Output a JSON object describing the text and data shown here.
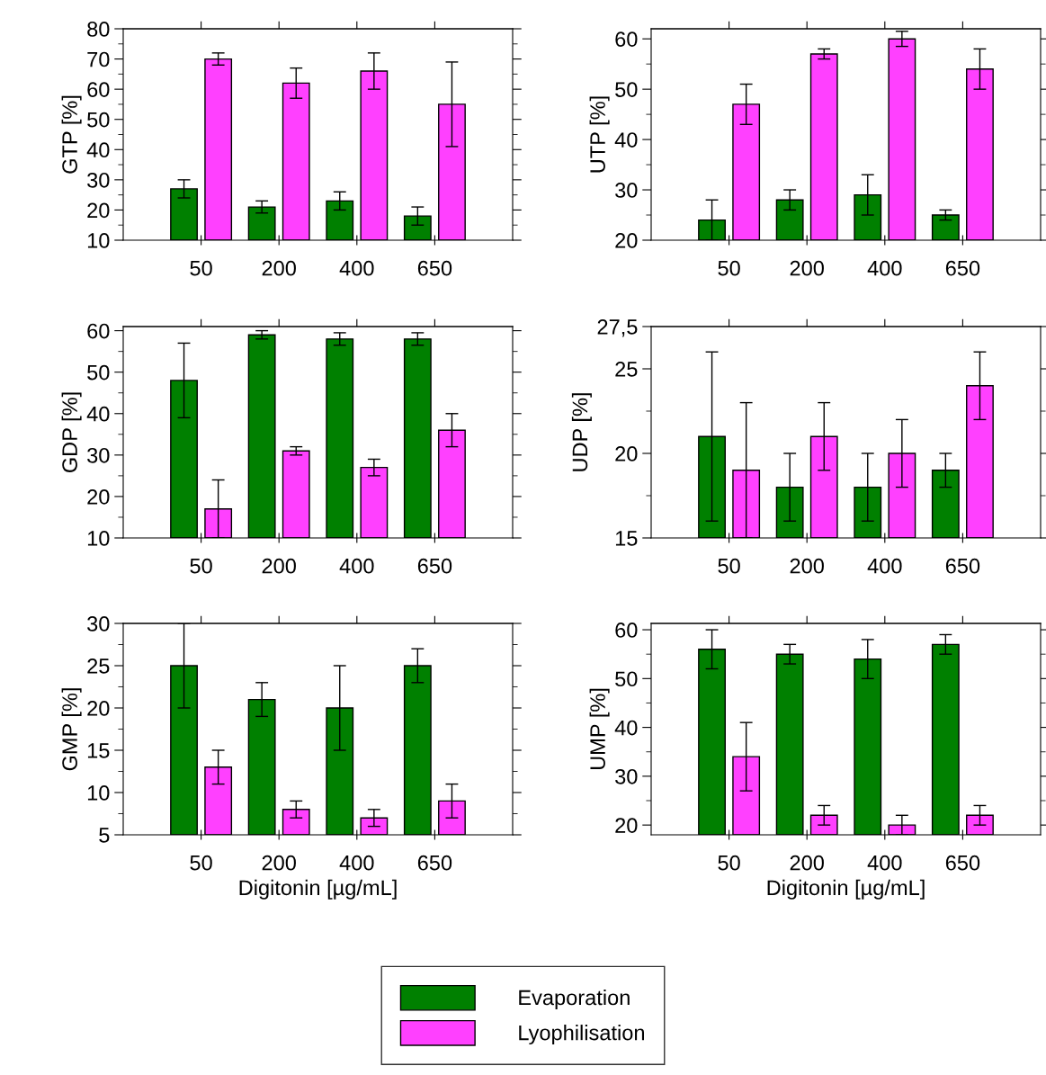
{
  "chart_data": [
    {
      "type": "bar",
      "ylabel": "GTP [%]",
      "legend": "bottom",
      "categories": [
        "50",
        "200",
        "400",
        "650"
      ],
      "ylim": [
        10,
        80
      ],
      "yticks": [
        10,
        20,
        30,
        40,
        50,
        60,
        70,
        80
      ],
      "series": [
        {
          "name": "Evaporation",
          "color": "#008000",
          "values": [
            27,
            21,
            23,
            18
          ],
          "errors": [
            3,
            2,
            3,
            3
          ]
        },
        {
          "name": "Lyophilisation",
          "color": "#ff40ff",
          "values": [
            70,
            62,
            66,
            55
          ],
          "errors": [
            2,
            5,
            6,
            14
          ]
        }
      ]
    },
    {
      "type": "bar",
      "ylabel": "UTP [%]",
      "legend": "bottom",
      "categories": [
        "50",
        "200",
        "400",
        "650"
      ],
      "ylim": [
        20,
        62
      ],
      "yticks": [
        20,
        30,
        40,
        50,
        60
      ],
      "series": [
        {
          "name": "Evaporation",
          "color": "#008000",
          "values": [
            24,
            28,
            29,
            25
          ],
          "errors": [
            4,
            2,
            4,
            1
          ]
        },
        {
          "name": "Lyophilisation",
          "color": "#ff40ff",
          "values": [
            47,
            57,
            60,
            54
          ],
          "errors": [
            4,
            1,
            1.5,
            4
          ]
        }
      ]
    },
    {
      "type": "bar",
      "ylabel": "GDP [%]",
      "legend": "bottom",
      "categories": [
        "50",
        "200",
        "400",
        "650"
      ],
      "ylim": [
        10,
        61
      ],
      "yticks": [
        10,
        20,
        30,
        40,
        50,
        60
      ],
      "series": [
        {
          "name": "Evaporation",
          "color": "#008000",
          "values": [
            48,
            59,
            58,
            58
          ],
          "errors": [
            9,
            1,
            1.5,
            1.5
          ]
        },
        {
          "name": "Lyophilisation",
          "color": "#ff40ff",
          "values": [
            17,
            31,
            27,
            36
          ],
          "errors": [
            7,
            1,
            2,
            4
          ]
        }
      ]
    },
    {
      "type": "bar",
      "ylabel": "UDP [%]",
      "legend": "bottom",
      "categories": [
        "50",
        "200",
        "400",
        "650"
      ],
      "ylim": [
        15,
        27.5
      ],
      "yticks": [
        15,
        20,
        25,
        {
          "value": 27.5,
          "label": "27,5"
        }
      ],
      "series": [
        {
          "name": "Evaporation",
          "color": "#008000",
          "values": [
            21,
            18,
            18,
            19
          ],
          "errors": [
            5,
            2,
            2,
            1
          ]
        },
        {
          "name": "Lyophilisation",
          "color": "#ff40ff",
          "values": [
            19,
            21,
            20,
            24
          ],
          "errors": [
            4,
            2,
            2,
            2
          ]
        }
      ]
    },
    {
      "type": "bar",
      "ylabel": "GMP [%]",
      "legend": "bottom",
      "xlabel": "Digitonin [µg/mL]",
      "categories": [
        "50",
        "200",
        "400",
        "650"
      ],
      "ylim": [
        5,
        30
      ],
      "yticks": [
        5,
        10,
        15,
        20,
        25,
        30
      ],
      "series": [
        {
          "name": "Evaporation",
          "color": "#008000",
          "values": [
            25,
            21,
            20,
            25
          ],
          "errors": [
            5,
            2,
            5,
            2
          ]
        },
        {
          "name": "Lyophilisation",
          "color": "#ff40ff",
          "values": [
            13,
            8,
            7,
            9
          ],
          "errors": [
            2,
            1,
            1,
            2
          ]
        }
      ]
    },
    {
      "type": "bar",
      "ylabel": "UMP [%]",
      "xlabel": "Digitonin [µg/mL]",
      "categories": [
        "50",
        "200",
        "400",
        "650"
      ],
      "ylim": [
        18,
        61.3
      ],
      "yticks": [
        20,
        30,
        40,
        50,
        60
      ],
      "legend": "bottom",
      "series": [
        {
          "name": "Evaporation",
          "color": "#008000",
          "values": [
            56,
            55,
            54,
            57
          ],
          "errors": [
            4,
            2,
            4,
            2
          ]
        },
        {
          "name": "Lyophilisation",
          "color": "#ff40ff",
          "values": [
            34,
            22,
            20,
            22
          ],
          "errors": [
            7,
            2,
            2,
            2
          ]
        }
      ]
    }
  ]
}
